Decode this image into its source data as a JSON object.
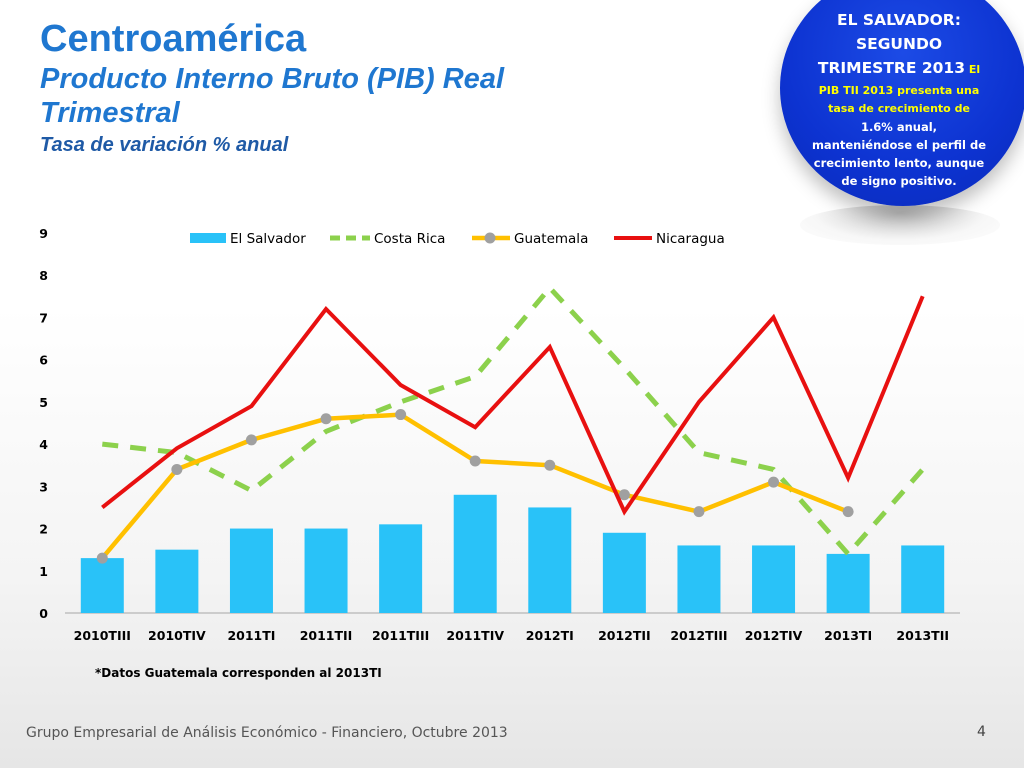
{
  "title": {
    "main": "Centroamérica",
    "subtitle": "Producto Interno Bruto (PIB) Real Trimestral",
    "note": "Tasa de variación % anual"
  },
  "callout": {
    "heading_line1": "EL SALVADOR:",
    "heading_line2": "SEGUNDO",
    "heading_line3_part1": "TRIMESTRE 2013",
    "heading_line3_part2": " El",
    "body_line1": "PIB TII 2013 presenta una",
    "body_line2": "tasa de crecimiento de",
    "body_line3": "1.6% anual,",
    "body_line4": "manteniéndose el perfil de",
    "body_line5": "crecimiento lento, aunque",
    "body_line6": "de signo positivo."
  },
  "footnote": "*Datos Guatemala corresponden al 2013TI",
  "footer": "Grupo Empresarial de Análisis Económico - Financiero, Octubre 2013",
  "page_number": "4",
  "colors": {
    "el_salvador": "#29c2f8",
    "costa_rica": "#8cd14c",
    "guatemala": "#ffc000",
    "guatemala_marker": "#a0a0a0",
    "nicaragua": "#e81010",
    "title": "#1f77d0",
    "callout_bg": "#0d33d1"
  },
  "chart_data": {
    "type": "bar",
    "categories": [
      "2010TIII",
      "2010TIV",
      "2011TI",
      "2011TII",
      "2011TIII",
      "2011TIV",
      "2012TI",
      "2012TII",
      "2012TIII",
      "2012TIV",
      "2013TI",
      "2013TII"
    ],
    "ylim": [
      0,
      9
    ],
    "yticks": [
      "0",
      "1",
      "2",
      "3",
      "4",
      "5",
      "6",
      "7",
      "8",
      "9"
    ],
    "legend_position": "top",
    "grid": false,
    "series": [
      {
        "name": "El Salvador",
        "type": "bar",
        "values": [
          1.3,
          1.5,
          2.0,
          2.0,
          2.1,
          2.8,
          2.5,
          1.9,
          1.6,
          1.6,
          1.4,
          1.6
        ]
      },
      {
        "name": "Costa Rica",
        "type": "line-dashed",
        "values": [
          4.0,
          3.8,
          2.9,
          4.3,
          5.0,
          5.6,
          7.7,
          5.8,
          3.8,
          3.4,
          1.4,
          3.4
        ]
      },
      {
        "name": "Guatemala",
        "type": "line-markers",
        "values": [
          1.3,
          3.4,
          4.1,
          4.6,
          4.7,
          3.6,
          3.5,
          2.8,
          2.4,
          3.1,
          2.4,
          null
        ]
      },
      {
        "name": "Nicaragua",
        "type": "line",
        "values": [
          2.5,
          3.9,
          4.9,
          7.2,
          5.4,
          4.4,
          6.3,
          2.4,
          5.0,
          7.0,
          3.2,
          7.5
        ]
      }
    ]
  }
}
